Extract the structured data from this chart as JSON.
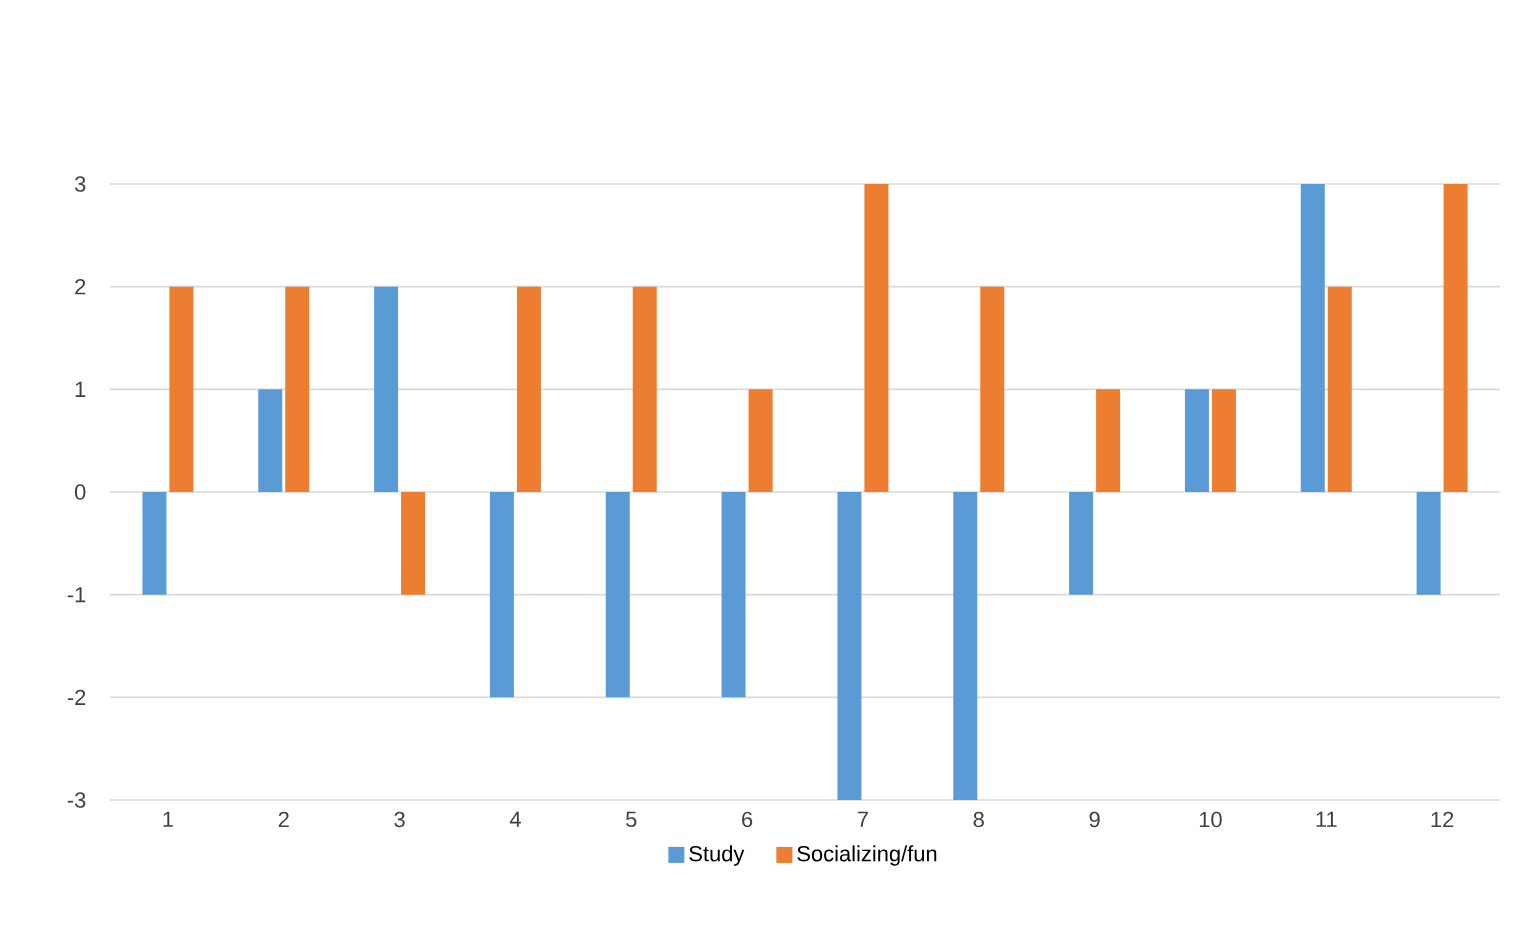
{
  "chart_data": {
    "type": "bar",
    "categories": [
      "1",
      "2",
      "3",
      "4",
      "5",
      "6",
      "7",
      "8",
      "9",
      "10",
      "11",
      "12"
    ],
    "series": [
      {
        "name": "Study",
        "color": "#5b9bd5",
        "values": [
          -1,
          1,
          2,
          -2,
          -2,
          -2,
          -3,
          -3,
          -1,
          1,
          3,
          -1
        ]
      },
      {
        "name": "Socializing/fun",
        "color": "#ed7d31",
        "values": [
          2,
          2,
          -1,
          2,
          2,
          1,
          3,
          2,
          1,
          1,
          2,
          3
        ]
      }
    ],
    "ylim": [
      -3,
      3
    ],
    "yticks": [
      -3,
      -2,
      -1,
      0,
      1,
      2,
      3
    ],
    "grid": "y",
    "legend": "bottom"
  }
}
